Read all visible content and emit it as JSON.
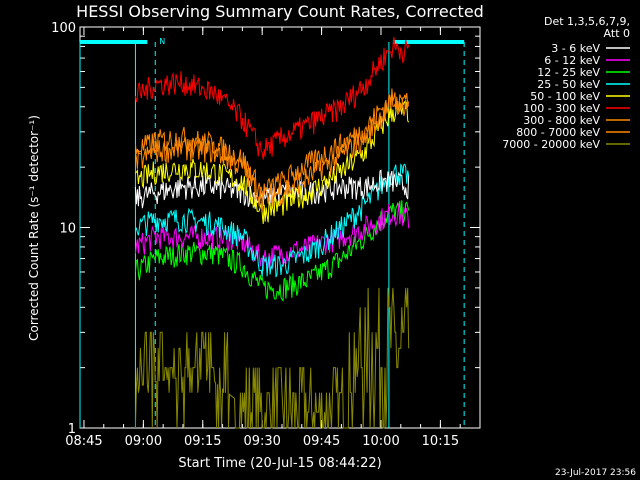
{
  "chart_data": {
    "type": "line",
    "title": "HESSI Observing Summary Count Rates, Corrected",
    "xlabel": "Start Time (20-Jul-15 08:44:22)",
    "ylabel": "Corrected Count Rate (s⁻¹ detector⁻¹)",
    "yscale": "log",
    "ylim": [
      1,
      100
    ],
    "ytick_labels": [
      "1",
      "10",
      "100"
    ],
    "xlim": [
      "08:44",
      "10:25"
    ],
    "xtick_labels": [
      "08:45",
      "09:00",
      "09:15",
      "09:30",
      "09:45",
      "10:00",
      "10:15"
    ],
    "legend_header": [
      "Det 1,3,5,6,7,9,",
      "Att 0"
    ],
    "legend_position": "right",
    "footer_date": "23-Jul-2017 23:56",
    "annotations": {
      "night_marker": "N",
      "cyan_bar_1": [
        "08:44",
        "09:01"
      ],
      "cyan_bar_2": [
        "10:03",
        "10:21"
      ],
      "cyan_solid_lines": [
        "08:44",
        "08:58",
        "10:02"
      ],
      "cyan_dashed_lines": [
        "09:03",
        "10:21"
      ]
    },
    "x": [
      "08:58",
      "09:03",
      "09:10",
      "09:18",
      "09:25",
      "09:30",
      "09:35",
      "09:42",
      "09:50",
      "09:56",
      "10:00",
      "10:03",
      "10:07"
    ],
    "series": [
      {
        "name": "3 - 6 keV",
        "color": "#ffffff",
        "values": [
          14,
          15,
          16,
          16,
          15,
          14,
          15,
          15,
          16,
          16,
          17,
          17,
          16
        ]
      },
      {
        "name": "6 - 12 keV",
        "color": "#ff00ff",
        "values": [
          8,
          9,
          9,
          9,
          8.5,
          7,
          7.5,
          8,
          9,
          10,
          11,
          12,
          11
        ]
      },
      {
        "name": "12 - 25 keV",
        "color": "#00ff00",
        "values": [
          6,
          7,
          7.5,
          7.5,
          6.5,
          5,
          5,
          5.5,
          7,
          9,
          11,
          12,
          12
        ]
      },
      {
        "name": "25 - 50 keV",
        "color": "#00ffff",
        "values": [
          10,
          11,
          11,
          10.5,
          9,
          6.5,
          6.5,
          7.5,
          10,
          13,
          16,
          19,
          18
        ]
      },
      {
        "name": "50 - 100 keV",
        "color": "#ffff00",
        "values": [
          17,
          19,
          20,
          19,
          17,
          12,
          13,
          15,
          19,
          24,
          32,
          38,
          38
        ]
      },
      {
        "name": "100 - 300 keV",
        "color": "#ff0000",
        "values": [
          45,
          52,
          53,
          47,
          35,
          24,
          28,
          33,
          40,
          52,
          68,
          80,
          76
        ]
      },
      {
        "name": "300 - 800 keV",
        "color": "#ff8800",
        "values": [
          24,
          27,
          28,
          26,
          22,
          15,
          17,
          21,
          26,
          31,
          39,
          44,
          43
        ]
      },
      {
        "name": "800 - 7000 keV",
        "color": "#ff8800",
        "values": [
          21,
          24,
          25,
          24,
          20,
          14,
          15,
          18,
          23,
          28,
          36,
          42,
          41
        ]
      },
      {
        "name": "7000 - 20000 keV",
        "color": "#888800",
        "values": [
          1.6,
          1.7,
          1.8,
          1.7,
          1.3,
          1.0,
          1.0,
          1.0,
          1.2,
          2.2,
          3.0,
          4.0,
          4.2
        ]
      }
    ]
  }
}
